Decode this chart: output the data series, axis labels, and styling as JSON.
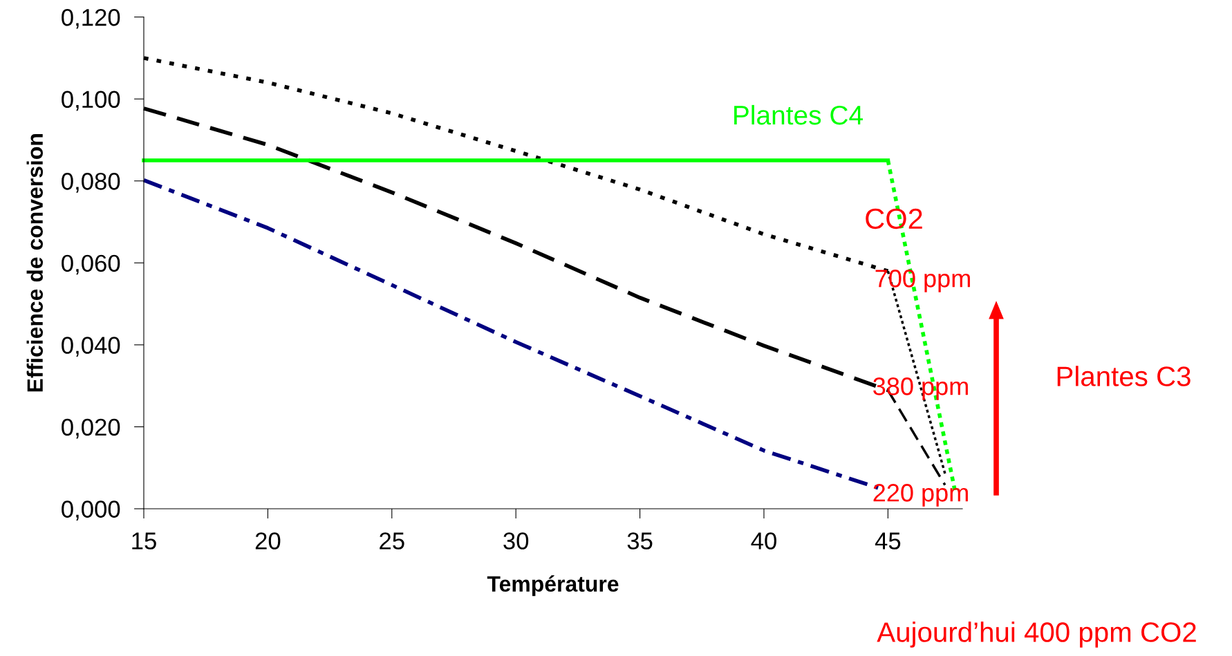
{
  "chart_data": {
    "type": "line",
    "xlabel": "Température",
    "ylabel": "Efficience de conversion",
    "xlim": [
      15,
      48
    ],
    "xticks": [
      15,
      20,
      25,
      30,
      35,
      40,
      45
    ],
    "ylim": [
      0,
      0.12
    ],
    "yticks": [
      {
        "value": 0,
        "label": "0,000"
      },
      {
        "value": 0.02,
        "label": "0,020"
      },
      {
        "value": 0.04,
        "label": "0,040"
      },
      {
        "value": 0.06,
        "label": "0,060"
      },
      {
        "value": 0.08,
        "label": "0,080"
      },
      {
        "value": 0.1,
        "label": "0,100"
      },
      {
        "value": 0.12,
        "label": "0,120"
      }
    ],
    "grid": false,
    "legend": false,
    "marker": "none",
    "series": [
      {
        "name": "700 ppm",
        "color": "#000000",
        "line_style": "dotted",
        "x": [
          15,
          20,
          25,
          30,
          35,
          40,
          45
        ],
        "values": [
          0.11,
          0.104,
          0.0965,
          0.0873,
          0.0779,
          0.067,
          0.058
        ]
      },
      {
        "name": "380 ppm",
        "color": "#000000",
        "line_style": "dashed",
        "x": [
          15,
          20,
          25,
          30,
          35,
          40,
          45
        ],
        "values": [
          0.0977,
          0.0888,
          0.0772,
          0.0648,
          0.0515,
          0.0398,
          0.0289
        ]
      },
      {
        "name": "220 ppm",
        "color": "#000080",
        "line_style": "dashdot",
        "x": [
          15,
          20,
          25,
          30,
          35,
          40,
          44.6
        ],
        "values": [
          0.0802,
          0.0685,
          0.0546,
          0.0407,
          0.0275,
          0.0142,
          0.0051
        ]
      },
      {
        "name": "Plantes C4",
        "color": "#00ff00",
        "line_style": "solid",
        "x": [
          15,
          45
        ],
        "values": [
          0.085,
          0.085
        ]
      },
      {
        "color": "#000000",
        "line_style": "dotted",
        "x": [
          45,
          47.3
        ],
        "values": [
          0.058,
          0.0086
        ]
      },
      {
        "color": "#000000",
        "line_style": "dashed",
        "x": [
          45,
          47.3
        ],
        "values": [
          0.0289,
          0.0058
        ]
      },
      {
        "color": "#00ff00",
        "line_style": "dotted",
        "x": [
          45,
          47.7
        ],
        "values": [
          0.085,
          0.0044
        ]
      }
    ],
    "annotations": [
      "CO2",
      "Plantes C3",
      "Aujourd’hui 400 ppm CO2"
    ]
  }
}
